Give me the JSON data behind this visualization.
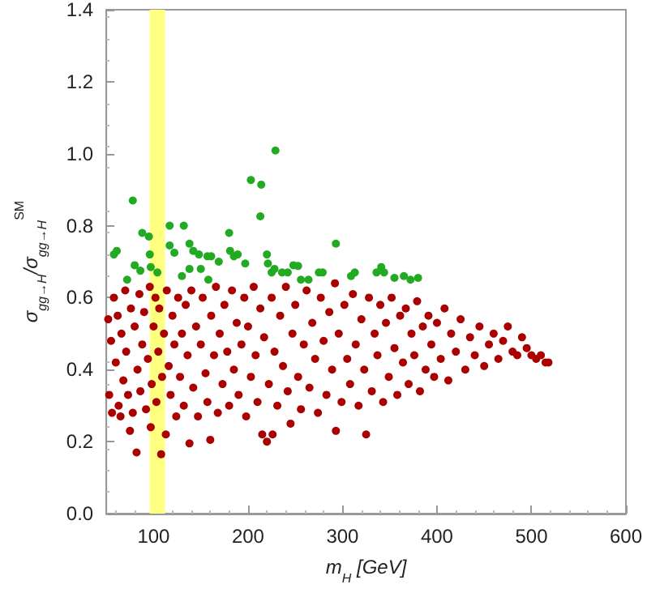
{
  "chart_data": {
    "type": "scatter",
    "xlabel": "m$_{H}$ [GeV]",
    "ylabel": "σ$_{gg→H}$/σ$_{gg→H}$$^{SM}$",
    "xlim": [
      50,
      600
    ],
    "xticks": [
      100,
      200,
      300,
      400,
      500,
      600
    ],
    "ylim": [
      0,
      1.4
    ],
    "yticks": [
      {
        "value": 0,
        "label": "0.0"
      },
      {
        "value": 0.2,
        "label": "0.2"
      },
      {
        "value": 0.4,
        "label": "0.4"
      },
      {
        "value": 0.6,
        "label": "0.6"
      },
      {
        "value": 0.8,
        "label": "0.8"
      },
      {
        "value": 1,
        "label": "1.0"
      },
      {
        "value": 1.2,
        "label": "1.2"
      },
      {
        "value": 1.4,
        "label": "1.4"
      }
    ],
    "grid": false,
    "marker": "circle",
    "bands": [
      {
        "axis": "x",
        "from": 96,
        "to": 112,
        "color": "#ffff80"
      }
    ],
    "series": [
      {
        "color": "#aa0000",
        "x": [
          52,
          53,
          55,
          56,
          58,
          60,
          62,
          63,
          65,
          66,
          68,
          70,
          71,
          73,
          75,
          76,
          78,
          80,
          82,
          83,
          85,
          86,
          88,
          90,
          92,
          94,
          96,
          97,
          98,
          100,
          102,
          103,
          105,
          106,
          108,
          109,
          111,
          113,
          114,
          116,
          118,
          120,
          122,
          124,
          126,
          128,
          130,
          132,
          134,
          136,
          138,
          140,
          142,
          145,
          147,
          150,
          152,
          155,
          157,
          160,
          161,
          164,
          166,
          168,
          170,
          173,
          175,
          178,
          180,
          183,
          185,
          188,
          190,
          193,
          196,
          198,
          200,
          203,
          206,
          208,
          210,
          213,
          215,
          217,
          220,
          222,
          225,
          226,
          228,
          231,
          234,
          237,
          240,
          242,
          245,
          247,
          250,
          253,
          256,
          259,
          262,
          265,
          268,
          271,
          274,
          277,
          280,
          283,
          286,
          289,
          292,
          293,
          296,
          299,
          302,
          305,
          308,
          311,
          314,
          317,
          320,
          323,
          325,
          328,
          331,
          334,
          337,
          340,
          343,
          346,
          349,
          352,
          355,
          358,
          361,
          364,
          367,
          370,
          373,
          376,
          379,
          382,
          385,
          388,
          391,
          394,
          397,
          400,
          404,
          408,
          412,
          415,
          420,
          425,
          430,
          435,
          440,
          445,
          450,
          455,
          460,
          465,
          470,
          475,
          480,
          485,
          490,
          495,
          500,
          505,
          510,
          515,
          518
        ],
        "values": [
          0.54,
          0.33,
          0.48,
          0.28,
          0.6,
          0.42,
          0.55,
          0.3,
          0.27,
          0.5,
          0.37,
          0.62,
          0.45,
          0.33,
          0.23,
          0.57,
          0.28,
          0.52,
          0.17,
          0.4,
          0.61,
          0.34,
          0.47,
          0.56,
          0.29,
          0.43,
          0.63,
          0.24,
          0.36,
          0.52,
          0.6,
          0.31,
          0.45,
          0.57,
          0.165,
          0.38,
          0.5,
          0.22,
          0.62,
          0.41,
          0.33,
          0.55,
          0.47,
          0.27,
          0.6,
          0.38,
          0.5,
          0.3,
          0.58,
          0.44,
          0.195,
          0.62,
          0.35,
          0.52,
          0.27,
          0.47,
          0.6,
          0.39,
          0.31,
          0.205,
          0.55,
          0.44,
          0.63,
          0.28,
          0.5,
          0.36,
          0.58,
          0.45,
          0.3,
          0.62,
          0.4,
          0.53,
          0.33,
          0.47,
          0.6,
          0.27,
          0.52,
          0.38,
          0.63,
          0.44,
          0.31,
          0.57,
          0.22,
          0.49,
          0.2,
          0.36,
          0.6,
          0.22,
          0.45,
          0.3,
          0.55,
          0.41,
          0.63,
          0.34,
          0.25,
          0.5,
          0.58,
          0.38,
          0.29,
          0.47,
          0.62,
          0.35,
          0.53,
          0.43,
          0.28,
          0.6,
          0.48,
          0.33,
          0.56,
          0.4,
          0.64,
          0.23,
          0.5,
          0.31,
          0.58,
          0.43,
          0.36,
          0.61,
          0.47,
          0.3,
          0.54,
          0.4,
          0.22,
          0.6,
          0.34,
          0.5,
          0.44,
          0.58,
          0.31,
          0.53,
          0.38,
          0.6,
          0.46,
          0.33,
          0.55,
          0.42,
          0.57,
          0.36,
          0.5,
          0.44,
          0.59,
          0.34,
          0.52,
          0.4,
          0.55,
          0.47,
          0.38,
          0.53,
          0.43,
          0.57,
          0.37,
          0.5,
          0.45,
          0.54,
          0.4,
          0.49,
          0.44,
          0.52,
          0.41,
          0.47,
          0.5,
          0.43,
          0.48,
          0.52,
          0.45,
          0.44,
          0.49,
          0.46,
          0.44,
          0.43,
          0.44,
          0.42,
          0.42
        ]
      },
      {
        "color": "#22aa22",
        "x": [
          58,
          61,
          78,
          72,
          80,
          86,
          88,
          95,
          96,
          97,
          104,
          117,
          117,
          122,
          132,
          138,
          142,
          148,
          138,
          130,
          150,
          157,
          161,
          158,
          169,
          180,
          181,
          185,
          189,
          197,
          203,
          214,
          213,
          229,
          220,
          221,
          225,
          228,
          236,
          242,
          248,
          253,
          256,
          264,
          275,
          279,
          293,
          309,
          313,
          336,
          341,
          344,
          355,
          365,
          372,
          380
        ],
        "values": [
          0.72,
          0.73,
          0.87,
          0.65,
          0.69,
          0.675,
          0.78,
          0.77,
          0.72,
          0.685,
          0.67,
          0.8,
          0.745,
          0.725,
          0.8,
          0.75,
          0.73,
          0.72,
          0.68,
          0.66,
          0.68,
          0.715,
          0.715,
          0.65,
          0.7,
          0.78,
          0.73,
          0.715,
          0.72,
          0.695,
          0.927,
          0.914,
          0.826,
          1.009,
          0.72,
          0.695,
          0.67,
          0.68,
          0.67,
          0.67,
          0.69,
          0.688,
          0.65,
          0.65,
          0.67,
          0.67,
          0.75,
          0.66,
          0.67,
          0.67,
          0.685,
          0.67,
          0.655,
          0.66,
          0.65,
          0.655
        ]
      }
    ]
  }
}
